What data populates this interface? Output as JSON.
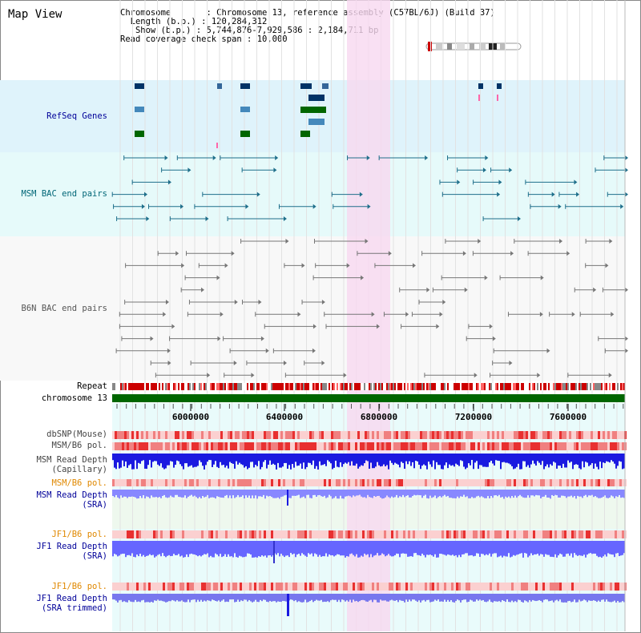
{
  "title": "Map View",
  "info": {
    "chromosome_label": "Chromosome",
    "chromosome_value": "Chromosome 13, reference assembly (C57BL/6J) (Build 37)",
    "length_label": "Length (b.p.)",
    "length_value": "120,284,312",
    "show_label": "Show (b.p.)",
    "show_value": "5,744,876-7,929,586 : 2,184,711 bp",
    "coverage_label": "Read coverage check span",
    "coverage_value": "10,000"
  },
  "tracks": {
    "refseq": "RefSeq Genes",
    "msm_bac": "MSM BAC end pairs",
    "b6n_bac": "B6N BAC end pairs",
    "repeat": "Repeat",
    "chromosome": "chromosome 13",
    "dbsnp": "dbSNP(Mouse)",
    "msm_b6_pol_1": "MSM/B6 pol.",
    "msm_read_depth_cap": "MSM Read Depth\n(Capillary)",
    "msm_b6_pol_2": "MSM/B6 pol.",
    "msm_read_depth_sra": "MSM Read Depth\n(SRA)",
    "jf1_b6_pol_1": "JF1/B6 pol.",
    "jf1_read_depth_sra": "JF1 Read Depth\n(SRA)",
    "jf1_b6_pol_2": "JF1/B6 pol.",
    "jf1_read_depth_trim": "JF1 Read Depth\n(SRA trimmed)"
  },
  "axis": {
    "ticks": [
      "6000000",
      "6400000",
      "6800000",
      "7200000",
      "7600000"
    ]
  },
  "colors": {
    "refseq_bg": "#dff3fb",
    "msm_bg": "#e6fafa",
    "b6n_bg": "#f8f8f8",
    "highlight": "#f8d8f0",
    "chromosome": "#006600",
    "depth_blue": "#1a1ae0",
    "depth_light": "#8888ff",
    "pol_red": "#e83030",
    "label_blue": "#000099",
    "label_teal": "#006677",
    "label_gray": "#555555",
    "label_orange": "#e08800"
  }
}
